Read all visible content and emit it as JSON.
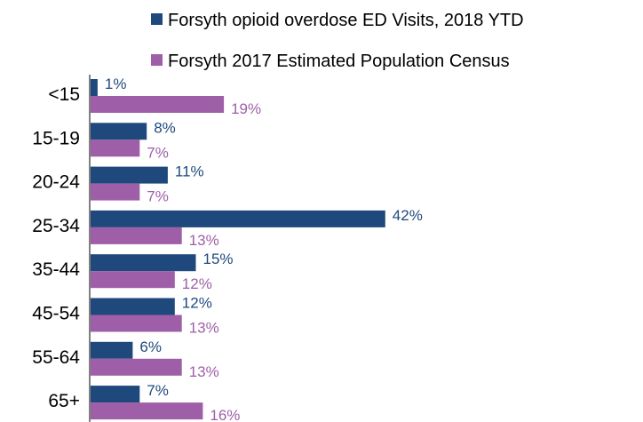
{
  "chart_data": {
    "type": "bar",
    "orientation": "horizontal",
    "categories": [
      "<15",
      "15-19",
      "20-24",
      "25-34",
      "35-44",
      "45-54",
      "55-64",
      "65+"
    ],
    "series": [
      {
        "name": "Forsyth opioid overdose ED Visits, 2018 YTD",
        "color": "#1F497D",
        "values": [
          1,
          8,
          11,
          42,
          15,
          12,
          6,
          7
        ],
        "labels": [
          "1%",
          "8%",
          "11%",
          "42%",
          "15%",
          "12%",
          "6%",
          "7%"
        ]
      },
      {
        "name": "Forsyth 2017 Estimated Population Census",
        "color": "#9E5FA8",
        "values": [
          19,
          7,
          7,
          13,
          12,
          13,
          13,
          16
        ],
        "labels": [
          "19%",
          "7%",
          "7%",
          "13%",
          "12%",
          "13%",
          "13%",
          "16%"
        ]
      }
    ],
    "legend_position": "top-right",
    "grid": false,
    "xlim": [
      0,
      45
    ]
  }
}
